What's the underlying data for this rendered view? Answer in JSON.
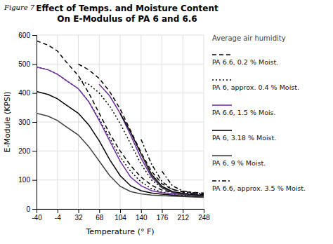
{
  "chart_data": {
    "type": "line",
    "title": [
      "Effect of Temps. and Moisture Content",
      "On E-Modulus of PA 6 and 6.6"
    ],
    "subtitle": "Average air humidity",
    "annotations": [
      "Figure 7"
    ],
    "x_label": "Temperature (° F)",
    "y_label": "E-Module (KPSI)",
    "xlim": [
      -40,
      248
    ],
    "ylim": [
      0,
      600
    ],
    "xticks": [
      -40,
      -4,
      32,
      68,
      104,
      140,
      176,
      212,
      248
    ],
    "yticks": [
      0,
      100,
      200,
      300,
      400,
      500,
      600
    ],
    "grid": true,
    "legend": "right",
    "series": [
      {
        "name": "PA 6.6, 0.2 % Moist.",
        "color": "#000000",
        "line_style": "dashed",
        "x": [
          -40,
          -20,
          -4,
          10,
          32,
          50,
          68,
          86,
          104,
          122,
          140,
          158,
          176,
          194,
          212,
          230,
          248
        ],
        "values": [
          580,
          565,
          545,
          510,
          460,
          400,
          330,
          260,
          200,
          150,
          110,
          82,
          65,
          57,
          53,
          51,
          50
        ]
      },
      {
        "name": "PA 6, approx. 0.4 % Moist.",
        "color": "#000000",
        "line_style": "dotted",
        "x": [
          -40,
          -20,
          -4,
          10,
          32,
          50,
          68,
          86,
          104,
          122,
          140,
          158,
          176,
          194,
          212,
          230,
          248
        ],
        "values": [
          490,
          480,
          465,
          445,
          415,
          370,
          310,
          245,
          180,
          130,
          93,
          70,
          58,
          52,
          48,
          46,
          44
        ]
      },
      {
        "name": "PA 6.6, 1.5 % Mois.",
        "color": "#7030a0",
        "line_style": "solid",
        "x": [
          -40,
          -20,
          -4,
          10,
          32,
          50,
          68,
          86,
          104,
          122,
          140,
          158,
          176,
          194,
          212,
          230,
          248
        ],
        "values": [
          490,
          480,
          465,
          445,
          415,
          370,
          305,
          235,
          165,
          110,
          80,
          63,
          56,
          52,
          49,
          47,
          45
        ]
      },
      {
        "color": "#000000",
        "line_style": "dashed",
        "x": [
          32,
          50,
          68,
          86,
          104,
          122,
          140,
          158,
          176,
          194,
          212,
          230,
          248
        ],
        "values": [
          500,
          480,
          450,
          405,
          345,
          270,
          195,
          130,
          87,
          67,
          60,
          57,
          55
        ]
      },
      {
        "color": "#000000",
        "line_style": "dotted",
        "x": [
          32,
          50,
          68,
          86,
          104,
          122,
          140,
          158,
          176,
          194,
          212,
          230,
          248
        ],
        "values": [
          445,
          430,
          400,
          355,
          295,
          225,
          155,
          100,
          72,
          58,
          53,
          50,
          48
        ]
      },
      {
        "name": "PA 6, 3.18 % Moist.",
        "color": "#000000",
        "line_style": "solid",
        "x": [
          -40,
          -20,
          -4,
          10,
          32,
          50,
          68,
          86,
          104,
          122,
          140,
          158,
          176,
          194,
          212,
          230,
          248
        ],
        "values": [
          405,
          395,
          380,
          360,
          330,
          290,
          235,
          170,
          115,
          80,
          63,
          55,
          51,
          48,
          45,
          43,
          42
        ]
      },
      {
        "color": "#7030a0",
        "line_style": "solid",
        "x": [
          68,
          86,
          104,
          122,
          140,
          158,
          176,
          194,
          212,
          230,
          248
        ],
        "values": [
          430,
          390,
          330,
          255,
          175,
          110,
          75,
          59,
          53,
          50,
          47
        ]
      },
      {
        "name": "PA 6, 9 % Moist.",
        "color": "#404040",
        "line_style": "solid",
        "x": [
          -40,
          -20,
          -4,
          10,
          32,
          50,
          68,
          86,
          104,
          122,
          140,
          158,
          176,
          194,
          212,
          230,
          248
        ],
        "values": [
          330,
          320,
          305,
          285,
          255,
          215,
          165,
          115,
          78,
          60,
          52,
          48,
          46,
          44,
          43,
          41,
          40
        ]
      },
      {
        "color": "#000000",
        "line_style": "solid",
        "x": [
          104,
          122,
          140,
          158,
          176,
          194,
          212,
          230,
          248
        ],
        "values": [
          330,
          265,
          190,
          120,
          78,
          60,
          53,
          49,
          46
        ]
      },
      {
        "name": "PA 6.6, approx. 3.5 % Moist.",
        "color": "#000000",
        "line_style": "dashdot",
        "x": [
          140,
          158,
          176,
          194,
          212,
          230,
          248
        ],
        "values": [
          240,
          155,
          95,
          68,
          58,
          53,
          50
        ]
      },
      {
        "color": "#404040",
        "line_style": "solid",
        "x": [
          140,
          158,
          176,
          194,
          212,
          230,
          248
        ],
        "values": [
          190,
          115,
          73,
          57,
          50,
          46,
          43
        ]
      },
      {
        "color": "#000000",
        "line_style": "dashdot",
        "x": [
          176,
          194,
          212,
          230,
          248
        ],
        "values": [
          130,
          80,
          62,
          56,
          52
        ]
      }
    ]
  }
}
